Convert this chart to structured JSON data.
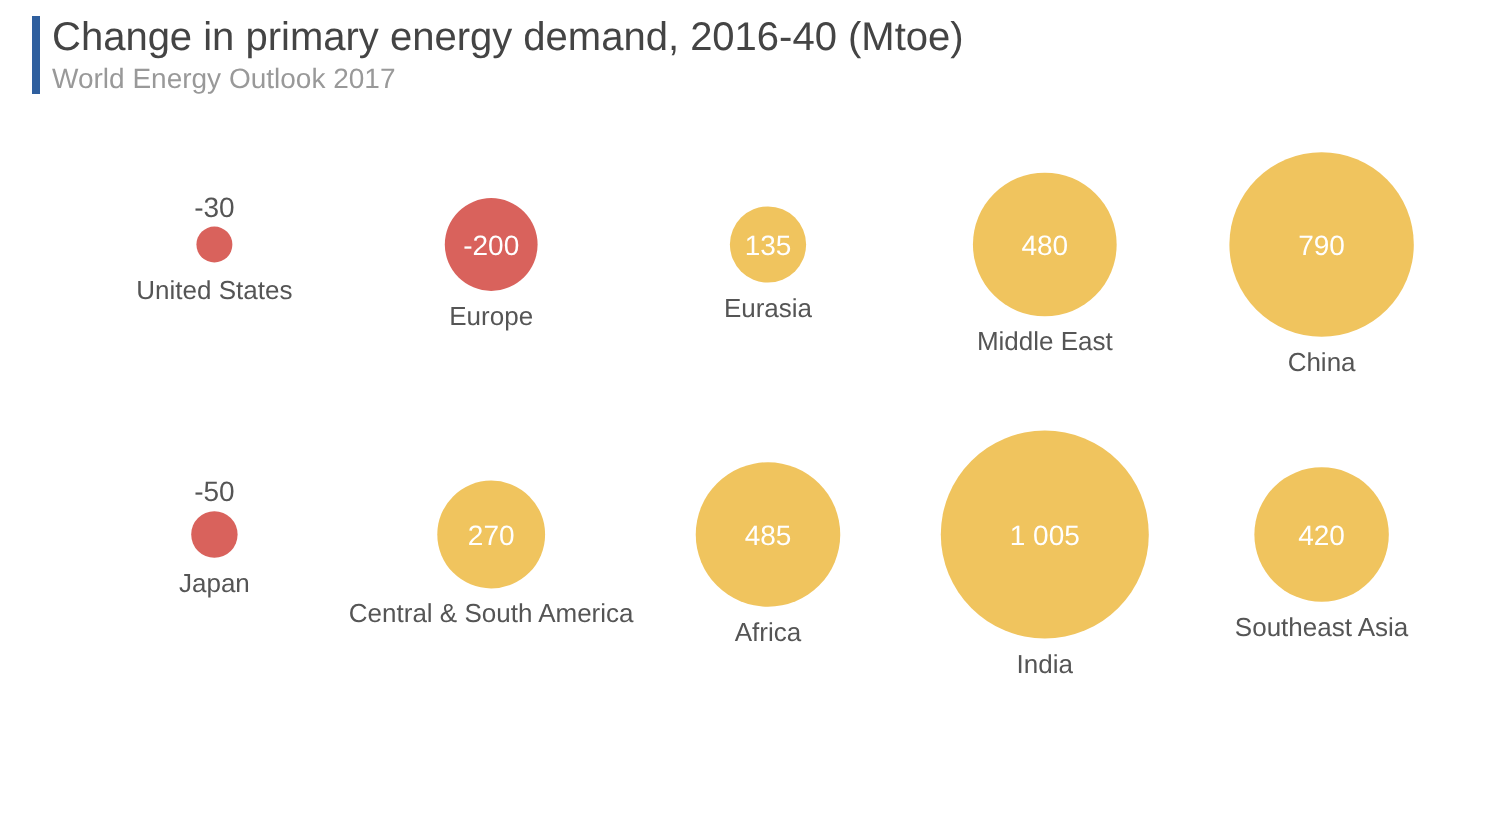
{
  "chart_data": {
    "type": "other",
    "title": "Change in primary energy demand, 2016-40 (Mtoe)",
    "subtitle": "World Energy Outlook 2017",
    "categories": [
      "United States",
      "Europe",
      "Eurasia",
      "Middle East",
      "China",
      "Japan",
      "Central & South America",
      "Africa",
      "India",
      "Southeast Asia"
    ],
    "values": [
      -30,
      -200,
      135,
      480,
      790,
      -50,
      270,
      485,
      1005,
      420
    ],
    "value_labels": [
      "-30",
      "-200",
      "135",
      "480",
      "790",
      "-50",
      "270",
      "485",
      "1 005",
      "420"
    ],
    "colors": [
      "#d9625c",
      "#d9625c",
      "#f0c45e",
      "#f0c45e",
      "#f0c45e",
      "#d9625c",
      "#f0c45e",
      "#f0c45e",
      "#f0c45e",
      "#f0c45e"
    ]
  }
}
